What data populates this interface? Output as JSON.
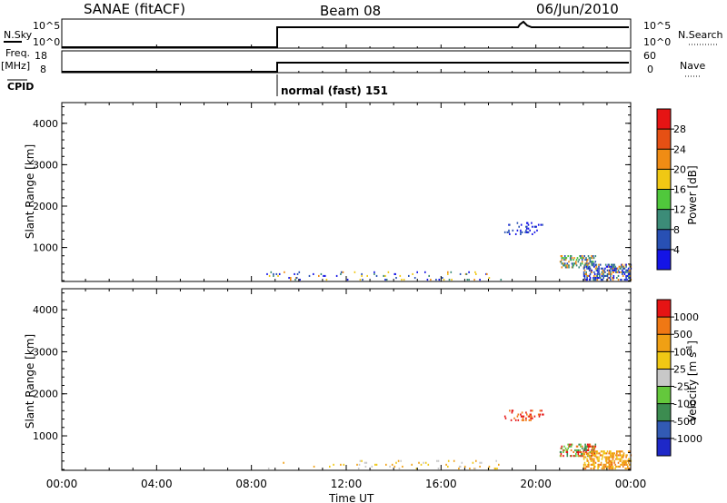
{
  "header": {
    "title": "SANAE (fitACF)",
    "beam": "Beam 08",
    "date": "06/Jun/2010"
  },
  "status_panels": {
    "nsky": {
      "label": "N.Sky",
      "ticks": [
        "10^5",
        "10^0"
      ]
    },
    "nsearch": {
      "label": "N.Search",
      "ticks": [
        "10^5",
        "10^0"
      ]
    },
    "freq": {
      "label": "Freq.",
      "unit": "[MHz]",
      "ticks": [
        "18",
        "8"
      ]
    },
    "nave": {
      "label": "Nave",
      "ticks": [
        "60",
        "0"
      ]
    },
    "cpid": {
      "label": "CPID",
      "mode_text": "normal (fast) 151"
    }
  },
  "chart_data": [
    {
      "type": "heatmap",
      "parameter": "power",
      "ylabel": "Slant Range [km]",
      "ylim": [
        180,
        4500
      ],
      "yticks": [
        1000,
        2000,
        3000,
        4000
      ],
      "xlim": [
        0,
        24
      ],
      "colorbar": {
        "label": "Power [dB]",
        "levels": [
          "4",
          "8",
          "12",
          "16",
          "20",
          "24",
          "28"
        ],
        "colors": [
          "#1414e6",
          "#2850b4",
          "#3c8c78",
          "#50c83c",
          "#f0c814",
          "#f08c14",
          "#e65014",
          "#e61414"
        ]
      },
      "clusters": [
        {
          "t0": 8.6,
          "t1": 18.5,
          "r0": 200,
          "r1": 420,
          "density": 0.05,
          "colors": [
            "#2850b4",
            "#1414e6",
            "#3c8c78",
            "#f0c814",
            "#f08c14"
          ]
        },
        {
          "t0": 18.6,
          "t1": 20.3,
          "r0": 1300,
          "r1": 1600,
          "density": 0.12,
          "colors": [
            "#2850b4",
            "#1414e6"
          ]
        },
        {
          "t0": 21.0,
          "t1": 22.5,
          "r0": 500,
          "r1": 800,
          "density": 0.3,
          "colors": [
            "#50c83c",
            "#3c8c78",
            "#2850b4",
            "#f08c14"
          ]
        },
        {
          "t0": 22.0,
          "t1": 24.0,
          "r0": 200,
          "r1": 600,
          "density": 0.35,
          "colors": [
            "#2850b4",
            "#1414e6",
            "#3c8c78",
            "#f08c14"
          ]
        }
      ]
    },
    {
      "type": "heatmap",
      "parameter": "velocity",
      "ylabel": "Slant Range [km]",
      "xlabel": "Time UT",
      "ylim": [
        180,
        4500
      ],
      "yticks": [
        1000,
        2000,
        3000,
        4000
      ],
      "xlim": [
        0,
        24
      ],
      "xticks": [
        "00:00",
        "04:00",
        "08:00",
        "12:00",
        "16:00",
        "20:00",
        "00:00"
      ],
      "colorbar": {
        "label": "Velocity [m s^-1]",
        "levels": [
          "1000",
          "500",
          "100",
          "25",
          "-25",
          "-100",
          "-500",
          "-1000"
        ],
        "colors": [
          "#1e28c8",
          "#325ab4",
          "#3c8c50",
          "#64c83c",
          "#c8c8c8",
          "#f0c814",
          "#f0a014",
          "#f07814",
          "#e61414"
        ]
      },
      "clusters": [
        {
          "t0": 8.6,
          "t1": 18.5,
          "r0": 200,
          "r1": 420,
          "density": 0.04,
          "colors": [
            "#f0c814",
            "#f0a014",
            "#c8c8c8"
          ]
        },
        {
          "t0": 18.6,
          "t1": 20.3,
          "r0": 1350,
          "r1": 1600,
          "density": 0.12,
          "colors": [
            "#e61414",
            "#f07814"
          ]
        },
        {
          "t0": 21.0,
          "t1": 22.5,
          "r0": 500,
          "r1": 800,
          "density": 0.3,
          "colors": [
            "#3c8c50",
            "#64c83c",
            "#f07814",
            "#e61414"
          ]
        },
        {
          "t0": 22.0,
          "t1": 24.0,
          "r0": 200,
          "r1": 650,
          "density": 0.35,
          "colors": [
            "#f0a014",
            "#f07814",
            "#f0c814"
          ]
        }
      ]
    }
  ]
}
